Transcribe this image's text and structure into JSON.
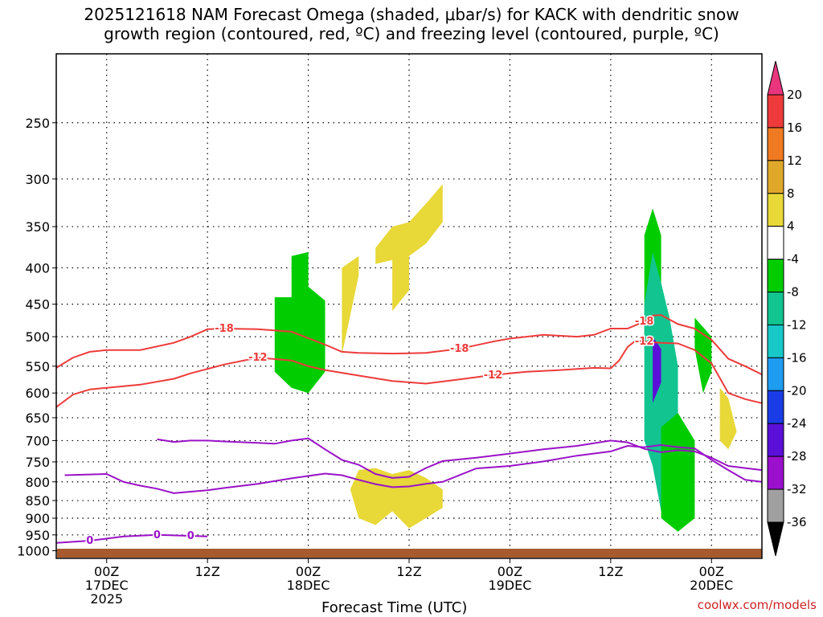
{
  "title": {
    "line1": "2025121618 NAM Forecast Omega (shaded, μbar/s) for KACK with dendritic snow",
    "line2": "growth region (contoured, red, ºC) and freezing level (contoured, purple, ºC)"
  },
  "credit": "coolwx.com/models",
  "chart_data": {
    "type": "heatmap",
    "xlabel": "Forecast Time (UTC)",
    "ylabel": "",
    "x_range_hours": [
      -6,
      78
    ],
    "x_ticks": [
      {
        "hour": 0,
        "lines": [
          "00Z",
          "17DEC",
          "2025"
        ]
      },
      {
        "hour": 12,
        "lines": [
          "12Z"
        ]
      },
      {
        "hour": 24,
        "lines": [
          "00Z",
          "18DEC"
        ]
      },
      {
        "hour": 36,
        "lines": [
          "12Z"
        ]
      },
      {
        "hour": 48,
        "lines": [
          "00Z",
          "19DEC"
        ]
      },
      {
        "hour": 60,
        "lines": [
          "12Z"
        ]
      },
      {
        "hour": 72,
        "lines": [
          "00Z",
          "20DEC"
        ]
      }
    ],
    "y_axis": "pressure (hPa), log scale",
    "y_range": [
      1025,
      200
    ],
    "y_ticks": [
      250,
      300,
      350,
      400,
      450,
      500,
      550,
      600,
      650,
      700,
      750,
      800,
      850,
      900,
      950,
      1000
    ],
    "grid": true,
    "colorbar": {
      "levels": [
        20,
        16,
        12,
        8,
        4,
        -4,
        -8,
        -12,
        -16,
        -20,
        -24,
        -28,
        -32,
        -36
      ],
      "colors": [
        "#e8357d",
        "#ee3a3a",
        "#f07a22",
        "#e0a82a",
        "#e8d838",
        "#ffffff",
        "#00cc00",
        "#12c490",
        "#18c8c8",
        "#1e9cf0",
        "#1a3ce6",
        "#5a10d8",
        "#9a10cc",
        "#a0a0a0",
        "#000000"
      ]
    },
    "contours": [
      {
        "name": "-18",
        "color": "#ee3b3b",
        "labels": [
          "-18",
          "-18",
          "-18"
        ],
        "points": [
          [
            -6,
            553
          ],
          [
            -4,
            535
          ],
          [
            -2,
            525
          ],
          [
            0,
            522
          ],
          [
            4,
            522
          ],
          [
            8,
            510
          ],
          [
            10,
            500
          ],
          [
            12,
            488
          ],
          [
            14,
            487
          ],
          [
            18,
            488
          ],
          [
            22,
            492
          ],
          [
            26,
            513
          ],
          [
            28,
            525
          ],
          [
            30,
            527
          ],
          [
            34,
            528
          ],
          [
            38,
            527
          ],
          [
            42,
            520
          ],
          [
            46,
            508
          ],
          [
            48,
            503
          ],
          [
            52,
            497
          ],
          [
            56,
            500
          ],
          [
            58,
            497
          ],
          [
            60,
            487
          ],
          [
            62,
            487
          ],
          [
            64,
            476
          ],
          [
            65,
            467
          ],
          [
            66,
            466
          ],
          [
            68,
            480
          ],
          [
            70,
            487
          ],
          [
            72,
            505
          ],
          [
            74,
            537
          ],
          [
            76,
            550
          ],
          [
            78,
            565
          ]
        ]
      },
      {
        "name": "-12",
        "color": "#ee3b3b",
        "labels": [
          "-12",
          "-12",
          "-12"
        ],
        "points": [
          [
            -6,
            628
          ],
          [
            -4,
            603
          ],
          [
            -2,
            593
          ],
          [
            0,
            590
          ],
          [
            4,
            584
          ],
          [
            8,
            573
          ],
          [
            10,
            563
          ],
          [
            14,
            547
          ],
          [
            18,
            535
          ],
          [
            22,
            540
          ],
          [
            24,
            550
          ],
          [
            26,
            557
          ],
          [
            30,
            567
          ],
          [
            34,
            577
          ],
          [
            38,
            582
          ],
          [
            42,
            574
          ],
          [
            46,
            566
          ],
          [
            50,
            560
          ],
          [
            54,
            557
          ],
          [
            58,
            553
          ],
          [
            60,
            554
          ],
          [
            61,
            540
          ],
          [
            62,
            517
          ],
          [
            63,
            506
          ],
          [
            64,
            508
          ],
          [
            66,
            510
          ],
          [
            68,
            511
          ],
          [
            70,
            522
          ],
          [
            72,
            545
          ],
          [
            74,
            600
          ],
          [
            76,
            612
          ],
          [
            78,
            620
          ]
        ]
      },
      {
        "name": "0",
        "color": "#9a12c8",
        "labels": [
          "0",
          "0",
          "0"
        ],
        "points": [
          [
            -6,
            975
          ],
          [
            -2,
            968
          ],
          [
            2,
            955
          ],
          [
            6,
            950
          ],
          [
            10,
            953
          ],
          [
            12,
            955
          ]
        ]
      },
      {
        "name": "0b",
        "color": "#9a12c8",
        "labels": [],
        "points": [
          [
            -5,
            783
          ],
          [
            0,
            780
          ],
          [
            2,
            800
          ],
          [
            4,
            810
          ],
          [
            6,
            818
          ],
          [
            8,
            830
          ],
          [
            10,
            826
          ],
          [
            12,
            822
          ],
          [
            14,
            816
          ],
          [
            18,
            805
          ],
          [
            22,
            791
          ],
          [
            26,
            779
          ],
          [
            28,
            783
          ],
          [
            30,
            795
          ],
          [
            32,
            806
          ],
          [
            34,
            814
          ],
          [
            36,
            812
          ],
          [
            38,
            805
          ],
          [
            40,
            800
          ],
          [
            44,
            766
          ],
          [
            48,
            760
          ],
          [
            52,
            749
          ],
          [
            56,
            735
          ],
          [
            60,
            725
          ],
          [
            62,
            712
          ],
          [
            64,
            715
          ],
          [
            66,
            710
          ],
          [
            68,
            715
          ],
          [
            70,
            718
          ],
          [
            72,
            745
          ],
          [
            74,
            770
          ],
          [
            76,
            795
          ],
          [
            78,
            800
          ]
        ]
      },
      {
        "name": "0c",
        "color": "#9a12c8",
        "labels": [],
        "points": [
          [
            6,
            697
          ],
          [
            8,
            703
          ],
          [
            10,
            700
          ],
          [
            12,
            700
          ],
          [
            14,
            702
          ],
          [
            18,
            705
          ],
          [
            20,
            707
          ],
          [
            22,
            700
          ],
          [
            24,
            695
          ],
          [
            26,
            720
          ],
          [
            28,
            745
          ],
          [
            30,
            757
          ],
          [
            32,
            780
          ],
          [
            34,
            790
          ],
          [
            36,
            787
          ],
          [
            38,
            765
          ],
          [
            40,
            748
          ],
          [
            44,
            740
          ],
          [
            48,
            730
          ],
          [
            52,
            720
          ],
          [
            56,
            712
          ],
          [
            60,
            700
          ],
          [
            62,
            704
          ],
          [
            64,
            719
          ],
          [
            66,
            727
          ],
          [
            68,
            722
          ],
          [
            70,
            725
          ],
          [
            72,
            740
          ],
          [
            74,
            760
          ],
          [
            76,
            765
          ],
          [
            78,
            770
          ]
        ]
      }
    ],
    "shaded_regions": [
      {
        "level": -8,
        "color": "#00cc00",
        "points": [
          [
            20,
            440
          ],
          [
            22,
            440
          ],
          [
            22,
            385
          ],
          [
            24,
            380
          ],
          [
            24,
            425
          ],
          [
            26,
            445
          ],
          [
            26,
            560
          ],
          [
            24,
            600
          ],
          [
            22,
            590
          ],
          [
            20,
            560
          ]
        ]
      },
      {
        "level": 4,
        "color": "#e8d838",
        "points": [
          [
            28,
            400
          ],
          [
            30,
            385
          ],
          [
            30,
            410
          ],
          [
            28,
            530
          ]
        ]
      },
      {
        "level": 4,
        "color": "#e8d838",
        "points": [
          [
            32,
            375
          ],
          [
            34,
            350
          ],
          [
            36,
            345
          ],
          [
            38,
            325
          ],
          [
            40,
            305
          ],
          [
            40,
            345
          ],
          [
            38,
            370
          ],
          [
            36,
            385
          ],
          [
            34,
            390
          ],
          [
            32,
            395
          ]
        ]
      },
      {
        "level": 4,
        "color": "#e8d838",
        "points": [
          [
            34,
            370
          ],
          [
            36,
            360
          ],
          [
            36,
            430
          ],
          [
            34,
            460
          ]
        ]
      },
      {
        "level": 4,
        "color": "#e8d838",
        "points": [
          [
            29,
            820
          ],
          [
            30,
            770
          ],
          [
            32,
            765
          ],
          [
            34,
            780
          ],
          [
            36,
            770
          ],
          [
            38,
            790
          ],
          [
            40,
            820
          ],
          [
            40,
            870
          ],
          [
            38,
            900
          ],
          [
            36,
            930
          ],
          [
            34,
            880
          ],
          [
            32,
            920
          ],
          [
            30,
            900
          ]
        ]
      },
      {
        "level": -4,
        "color": "#00cc00",
        "points": [
          [
            64,
            360
          ],
          [
            65,
            330
          ],
          [
            66,
            360
          ],
          [
            66,
            500
          ],
          [
            65,
            600
          ],
          [
            64,
            520
          ]
        ]
      },
      {
        "level": -12,
        "color": "#12c490",
        "points": [
          [
            64,
            450
          ],
          [
            65,
            380
          ],
          [
            66,
            420
          ],
          [
            67,
            470
          ],
          [
            68,
            550
          ],
          [
            68,
            700
          ],
          [
            69,
            800
          ],
          [
            70,
            870
          ],
          [
            68,
            920
          ],
          [
            66,
            880
          ],
          [
            65,
            760
          ],
          [
            64,
            700
          ],
          [
            64,
            600
          ]
        ]
      },
      {
        "level": -24,
        "color": "#5a10d8",
        "points": [
          [
            65,
            500
          ],
          [
            66,
            520
          ],
          [
            66,
            580
          ],
          [
            65,
            620
          ],
          [
            65,
            540
          ]
        ]
      },
      {
        "level": -8,
        "color": "#00cc00",
        "points": [
          [
            66,
            670
          ],
          [
            68,
            640
          ],
          [
            70,
            700
          ],
          [
            70,
            900
          ],
          [
            68,
            940
          ],
          [
            66,
            900
          ]
        ]
      },
      {
        "level": -8,
        "color": "#00cc00",
        "points": [
          [
            70,
            470
          ],
          [
            72,
            500
          ],
          [
            72,
            560
          ],
          [
            71,
            600
          ],
          [
            70,
            520
          ]
        ]
      },
      {
        "level": 4,
        "color": "#e8d838",
        "points": [
          [
            73,
            590
          ],
          [
            74,
            610
          ],
          [
            75,
            680
          ],
          [
            74,
            720
          ],
          [
            73,
            700
          ]
        ]
      }
    ]
  }
}
